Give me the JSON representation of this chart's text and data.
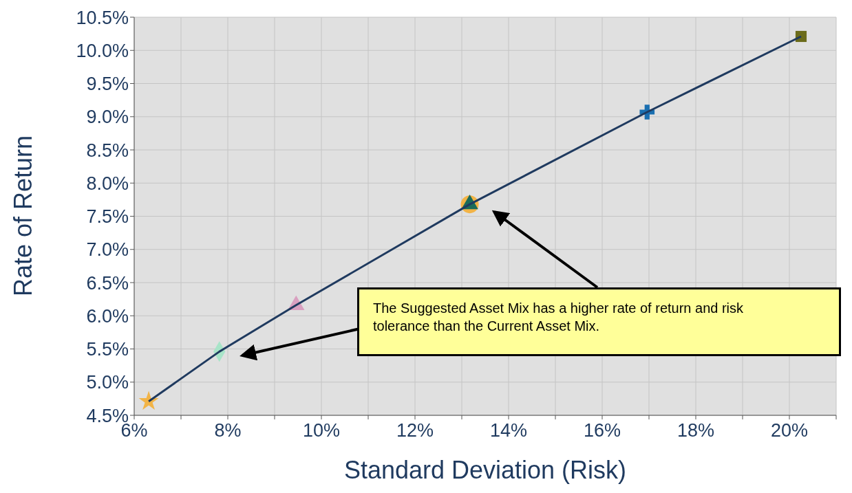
{
  "chart_data": {
    "type": "scatter",
    "xlabel": "Standard Deviation (Risk)",
    "ylabel": "Rate of Return",
    "annotations": [
      "The Suggested Asset Mix has a higher rate of return and risk tolerance than the Current Asset Mix."
    ],
    "xlim": [
      6,
      21
    ],
    "xticks": [
      {
        "value": 6,
        "label": "6%"
      },
      {
        "value": 7,
        "label": null
      },
      {
        "value": 8,
        "label": "8%"
      },
      {
        "value": 9,
        "label": null
      },
      {
        "value": 10,
        "label": "10%"
      },
      {
        "value": 11,
        "label": null
      },
      {
        "value": 12,
        "label": "12%"
      },
      {
        "value": 13,
        "label": null
      },
      {
        "value": 14,
        "label": "14%"
      },
      {
        "value": 15,
        "label": null
      },
      {
        "value": 16,
        "label": "16%"
      },
      {
        "value": 17,
        "label": null
      },
      {
        "value": 18,
        "label": "18%"
      },
      {
        "value": 19,
        "label": null
      },
      {
        "value": 20,
        "label": "20%"
      },
      {
        "value": 21,
        "label": null
      }
    ],
    "ylim": [
      4.5,
      10.5
    ],
    "yticks": [
      {
        "value": 4.5,
        "label": "4.5%"
      },
      {
        "value": 5,
        "label": "5.0%"
      },
      {
        "value": 5.5,
        "label": "5.5%"
      },
      {
        "value": 6,
        "label": "6.0%"
      },
      {
        "value": 6.5,
        "label": "6.5%"
      },
      {
        "value": 7,
        "label": "7.0%"
      },
      {
        "value": 7.5,
        "label": "7.5%"
      },
      {
        "value": 8,
        "label": "8.0%"
      },
      {
        "value": 8.5,
        "label": "8.5%"
      },
      {
        "value": 9,
        "label": "9.0%"
      },
      {
        "value": 9.5,
        "label": "9.5%"
      },
      {
        "value": 10,
        "label": "10.0%"
      },
      {
        "value": 10.5,
        "label": "10.5%"
      }
    ],
    "grid": true,
    "series": [
      {
        "type": "line",
        "color": "#1f3a5f",
        "marker": "none",
        "x": [
          6.31,
          7.82,
          9.46,
          13.17,
          16.96,
          20.25
        ],
        "values": [
          4.71,
          5.46,
          6.16,
          7.68,
          9.07,
          10.21
        ]
      },
      {
        "type": "scatter",
        "color": "#f2b447",
        "marker": "star",
        "x": [
          6.31
        ],
        "values": [
          4.71
        ]
      },
      {
        "type": "scatter",
        "color": "#a8e4c8",
        "marker": "diamond",
        "x": [
          7.82
        ],
        "values": [
          5.46
        ]
      },
      {
        "type": "scatter",
        "color": "#d9a0c0",
        "marker": "triangle",
        "x": [
          9.46
        ],
        "values": [
          6.16
        ]
      },
      {
        "type": "scatter",
        "color": "#f2b447",
        "marker": "circle",
        "x": [
          13.17
        ],
        "values": [
          7.68
        ]
      },
      {
        "type": "scatter",
        "color": "#1a6b5a",
        "marker": "triangle",
        "x": [
          13.17
        ],
        "values": [
          7.68
        ]
      },
      {
        "type": "scatter",
        "color": "#1a6fb0",
        "marker": "cross",
        "x": [
          16.96
        ],
        "values": [
          9.07
        ]
      },
      {
        "type": "scatter",
        "color": "#6b6b1a",
        "marker": "square",
        "x": [
          20.25
        ],
        "values": [
          10.21
        ]
      }
    ]
  }
}
